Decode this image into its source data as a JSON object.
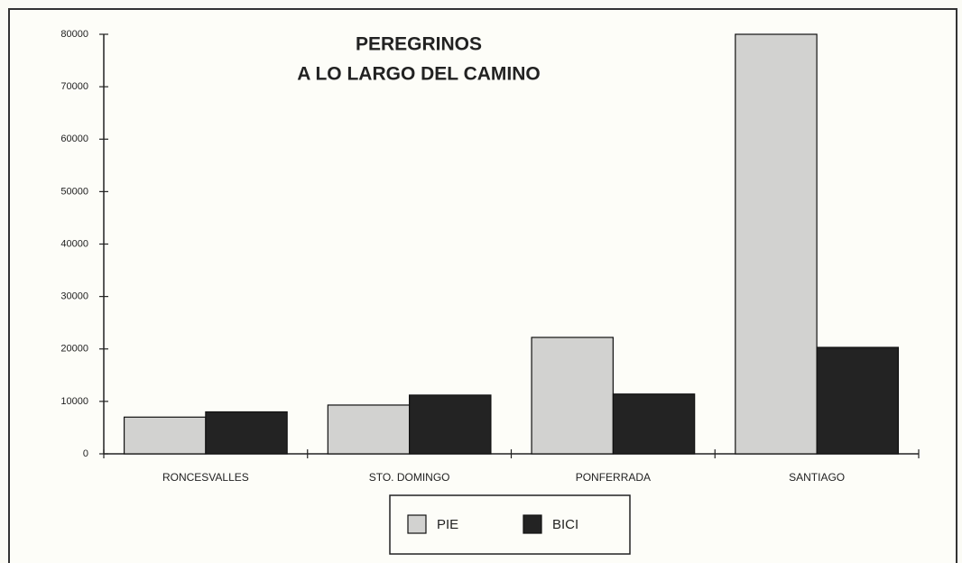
{
  "chart_data": {
    "type": "bar",
    "title": [
      "PEREGRINOS",
      "A LO LARGO DEL CAMINO"
    ],
    "categories": [
      "RONCESVALLES",
      "STO. DOMINGO",
      "PONFERRADA",
      "SANTIAGO"
    ],
    "series": [
      {
        "name": "PIE",
        "color": "#d2d2d0",
        "values": [
          7000,
          9300,
          22200,
          80000
        ]
      },
      {
        "name": "BICI",
        "color": "#232323",
        "values": [
          8000,
          11200,
          11400,
          20300
        ]
      }
    ],
    "ylim": [
      0,
      80000
    ],
    "yticks": [
      0,
      10000,
      20000,
      30000,
      40000,
      50000,
      60000,
      70000,
      80000
    ],
    "grid": false,
    "legend": "bottom"
  }
}
